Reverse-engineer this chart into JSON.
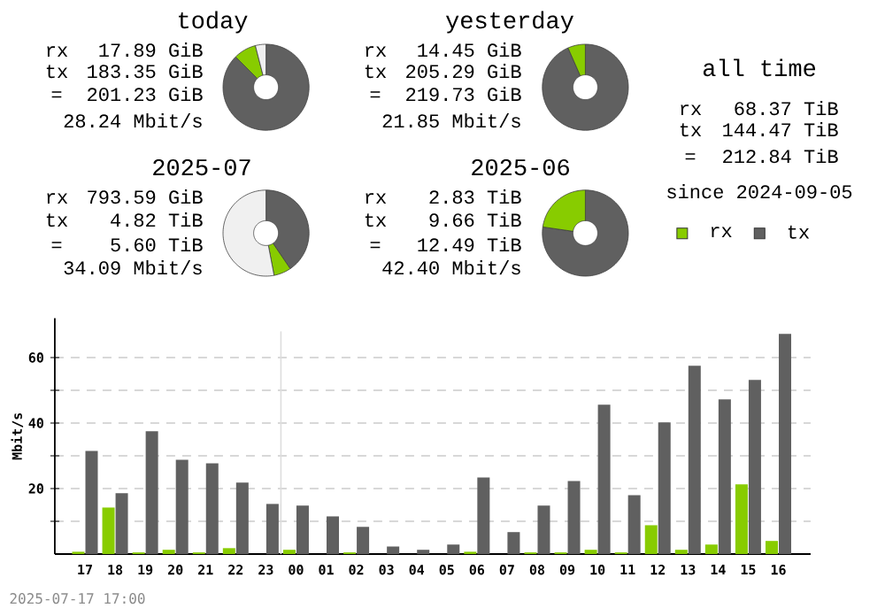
{
  "chart_data": [
    {
      "type": "donut",
      "title": "today",
      "categories": [
        null,
        null,
        null
      ],
      "values": [
        87.5,
        8.5,
        4
      ],
      "colors": [
        "#606060",
        "#88cc00",
        "#f0f0f0"
      ],
      "annotations": [
        "rx",
        "17.89 GiB",
        "tx",
        "183.35 GiB",
        "=",
        "201.23 GiB",
        "28.24 Mbit/s"
      ]
    },
    {
      "type": "donut",
      "title": "yesterday",
      "categories": [
        null,
        null
      ],
      "values": [
        93.4,
        6.6
      ],
      "colors": [
        "#606060",
        "#88cc00"
      ],
      "annotations": [
        "rx",
        "14.45 GiB",
        "tx",
        "205.29 GiB",
        "=",
        "219.73 GiB",
        "21.85 Mbit/s"
      ]
    },
    {
      "type": "other",
      "title": "all time",
      "annotations": [
        "rx",
        "68.37 TiB",
        "tx",
        "144.47 TiB",
        "=",
        "212.84 TiB",
        "since 2024-09-05"
      ]
    },
    {
      "type": "donut",
      "title": "2025-07",
      "categories": [
        null,
        null,
        null
      ],
      "values": [
        40.5,
        6.5,
        53
      ],
      "colors": [
        "#606060",
        "#88cc00",
        "#f0f0f0"
      ],
      "annotations": [
        "rx",
        "793.59 GiB",
        "tx",
        "4.82 TiB",
        "=",
        "5.60 TiB",
        "34.09 Mbit/s"
      ]
    },
    {
      "type": "donut",
      "title": "2025-06",
      "categories": [
        null,
        null
      ],
      "values": [
        77.3,
        22.7
      ],
      "colors": [
        "#606060",
        "#88cc00"
      ],
      "annotations": [
        "rx",
        "2.83 TiB",
        "tx",
        "9.66 TiB",
        "=",
        "12.49 TiB",
        "42.40 Mbit/s"
      ]
    },
    {
      "type": "bar",
      "ylabel": "Mbit/s",
      "categories": [
        "17",
        "18",
        "19",
        "20",
        "21",
        "22",
        "23",
        "00",
        "01",
        "02",
        "03",
        "04",
        "05",
        "06",
        "07",
        "08",
        "09",
        "10",
        "11",
        "12",
        "13",
        "14",
        "15",
        "16"
      ],
      "series": [
        {
          "name": "rx",
          "color": "#88cc00",
          "values": [
            0.7,
            14.2,
            0.5,
            1.3,
            0.5,
            1.8,
            0,
            1.3,
            0,
            0.5,
            0,
            0,
            0,
            0.7,
            0,
            0.5,
            0.5,
            1.3,
            0.5,
            8.8,
            1.3,
            2.9,
            21.3,
            4.0
          ]
        },
        {
          "name": "tx",
          "color": "#606060",
          "values": [
            31.5,
            18.6,
            37.5,
            28.8,
            27.7,
            21.8,
            15.3,
            14.8,
            11.5,
            8.3,
            2.3,
            1.3,
            2.9,
            23.4,
            6.7,
            14.8,
            22.3,
            45.6,
            18.0,
            40.2,
            57.5,
            47.2,
            53.2,
            67.2
          ]
        }
      ],
      "ylim": [
        0,
        72
      ],
      "yticks": [
        {
          "value": 10,
          "label": null
        },
        20,
        {
          "value": 30,
          "label": null
        },
        40,
        {
          "value": 50,
          "label": null
        },
        60
      ],
      "grid": "y",
      "legend": "top right",
      "ref_lines": [
        {
          "axis": "x",
          "value": "00",
          "color": "#dddddd"
        }
      ],
      "annotations": [
        "2025-07-17 17:00"
      ]
    }
  ]
}
